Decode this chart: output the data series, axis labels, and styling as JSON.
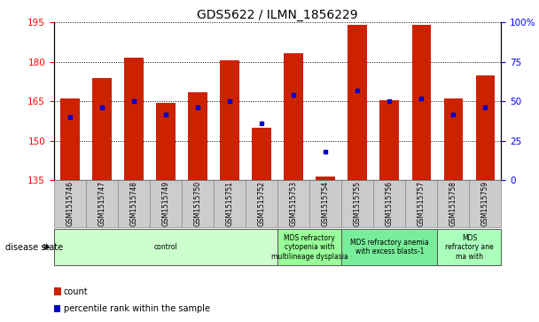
{
  "title": "GDS5622 / ILMN_1856229",
  "samples": [
    "GSM1515746",
    "GSM1515747",
    "GSM1515748",
    "GSM1515749",
    "GSM1515750",
    "GSM1515751",
    "GSM1515752",
    "GSM1515753",
    "GSM1515754",
    "GSM1515755",
    "GSM1515756",
    "GSM1515757",
    "GSM1515758",
    "GSM1515759"
  ],
  "count_values": [
    166.0,
    174.0,
    181.5,
    164.5,
    168.5,
    180.5,
    155.0,
    183.5,
    136.5,
    194.0,
    165.5,
    194.0,
    166.0,
    175.0
  ],
  "percentile_values": [
    40,
    46,
    50,
    42,
    46,
    50,
    36,
    54,
    18,
    57,
    50,
    52,
    42,
    46
  ],
  "y_min": 135,
  "y_max": 195,
  "y_ticks": [
    135,
    150,
    165,
    180,
    195
  ],
  "y2_ticks": [
    0,
    25,
    50,
    75,
    100
  ],
  "bar_color": "#cc2200",
  "dot_color": "#0000cc",
  "background_color": "#ffffff",
  "disease_groups": [
    {
      "label": "control",
      "start": 0,
      "end": 7,
      "color": "#ccffcc"
    },
    {
      "label": "MDS refractory\ncytopenia with\nmultilineage dysplasia",
      "start": 7,
      "end": 9,
      "color": "#99ff99"
    },
    {
      "label": "MDS refractory anemia\nwith excess blasts-1",
      "start": 9,
      "end": 12,
      "color": "#77ee99"
    },
    {
      "label": "MDS\nrefractory ane\nma with",
      "start": 12,
      "end": 14,
      "color": "#aaffbb"
    }
  ]
}
